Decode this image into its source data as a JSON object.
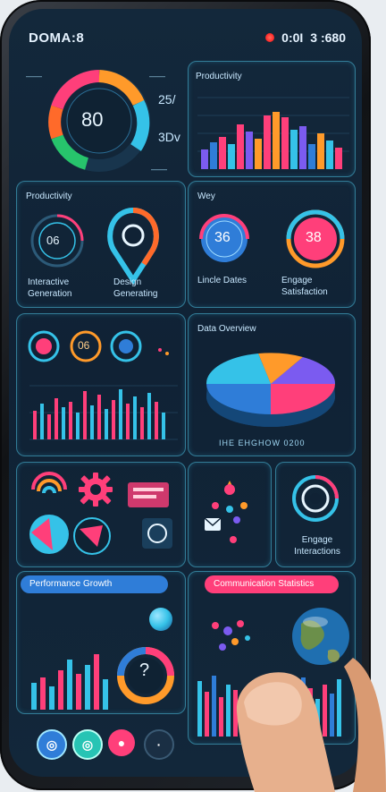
{
  "status_bar": {
    "time": "DOMA:8",
    "signal": "0:0I",
    "battery": "3 :680"
  },
  "top_gauge": {
    "value": "80",
    "label_top_left": "——",
    "label_top_right": "——",
    "percent_right_top": "25/",
    "percent_right_mid": "3Dv",
    "percent_right_bottom": "——"
  },
  "top_bar_chart": {
    "title": "Productivity"
  },
  "productivity_card": {
    "title": "Productivity",
    "gauge_value": "06",
    "label_left": "Interactive Generation",
    "label_right": "Design Generating"
  },
  "right_gauges_card": {
    "title": "Wey",
    "gauge_left_value": "36",
    "gauge_right_value": "38",
    "label_left": "Lincle Dates",
    "label_right": "Engage Satisfaction"
  },
  "data_overview_card": {
    "title": "Data Overview",
    "footer": "IHE EHGHOW 0200"
  },
  "left_mid_card": {
    "circle_value": "06"
  },
  "bottom_left_pill": {
    "label": "Performance Growth"
  },
  "bottom_right_pill": {
    "label": "Communication Statistics"
  },
  "engagement_card": {
    "label": "Engage Interactions"
  },
  "icons": {
    "gear": "gear-icon",
    "question": "?",
    "image": "image-icon",
    "target": "target-icon"
  },
  "colors": {
    "cyan": "#35c2e8",
    "pink": "#ff3f7a",
    "orange": "#ff9a2a",
    "blue": "#2f7dd8",
    "purple": "#7b5bf0",
    "green": "#27c46c"
  }
}
